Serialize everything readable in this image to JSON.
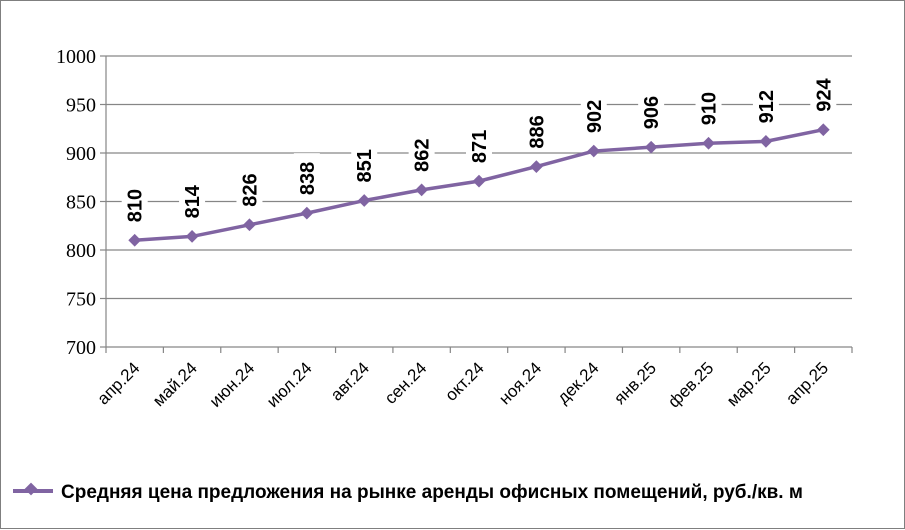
{
  "chart_data": {
    "type": "line",
    "title": "",
    "xlabel": "",
    "ylabel": "",
    "categories": [
      "апр.24",
      "май.24",
      "июн.24",
      "июл.24",
      "авг.24",
      "сен.24",
      "окт.24",
      "ноя.24",
      "дек.24",
      "янв.25",
      "фев.25",
      "мар.25",
      "апр.25"
    ],
    "series": [
      {
        "name": "Средняя цена предложения на рынке аренды офисных помещений,  руб./кв. м",
        "values": [
          810,
          814,
          826,
          838,
          851,
          862,
          871,
          886,
          902,
          906,
          910,
          912,
          924
        ],
        "color": "#8064a2"
      }
    ],
    "ylim": [
      700,
      1000
    ],
    "yticks": [
      "700",
      "750",
      "800",
      "850",
      "900",
      "950",
      "1000"
    ],
    "grid": true,
    "legend_position": "bottom-left",
    "data_labels": true
  }
}
